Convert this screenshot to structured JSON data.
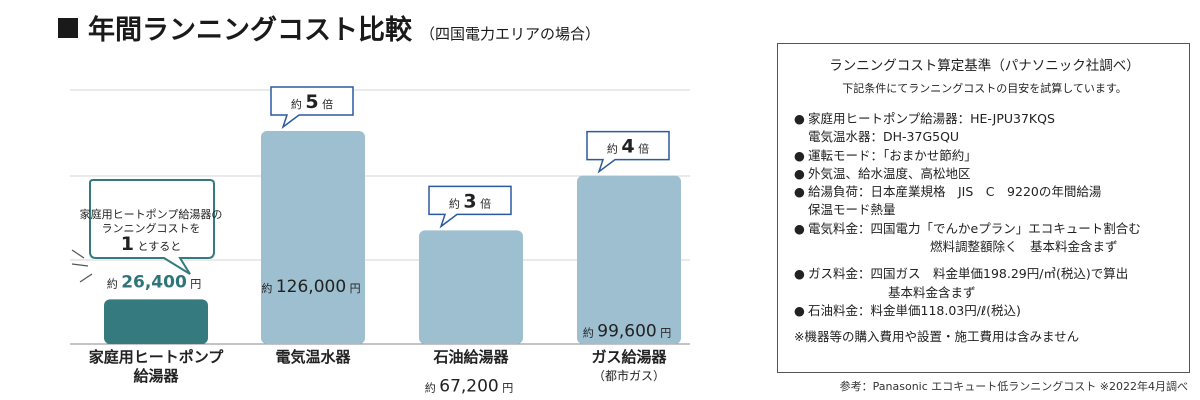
{
  "header": {
    "title": "年間ランニングコスト比較",
    "subtitle": "（四国電力エリアの場合）"
  },
  "chart_data": {
    "type": "bar",
    "title": "年間ランニングコスト比較",
    "subtitle": "（四国電力エリアの場合）",
    "value_unit": "円",
    "value_prefix": "約",
    "grid": true,
    "categories": [
      {
        "label": "家庭用ヒートポンプ",
        "label2": "給湯器",
        "sublabel": ""
      },
      {
        "label": "電気温水器",
        "label2": "",
        "sublabel": ""
      },
      {
        "label": "石油給湯器",
        "label2": "",
        "sublabel": ""
      },
      {
        "label": "ガス給湯器",
        "label2": "",
        "sublabel": "（都市ガス）"
      }
    ],
    "values": [
      26400,
      126000,
      67200,
      99600
    ],
    "value_labels": [
      "26,400",
      "126,000",
      "67,200",
      "99,600"
    ],
    "multipliers": [
      null,
      "5",
      "3",
      "4"
    ],
    "multiplier_prefix": "約",
    "multiplier_suffix": "倍",
    "baseline_callout": {
      "line1": "家庭用ヒートポンプ給湯器の",
      "line2": "ランニングコストを",
      "num": "1",
      "line3": "とすると"
    },
    "colors": {
      "highlight": "#347a7e",
      "bar": "#9dbfd0",
      "callout_border": "#2a5aa0"
    }
  },
  "criteria": {
    "title": "ランニングコスト算定基準（パナソニック社調べ）",
    "intro": "下記条件にてランニングコストの目安を試算しています。",
    "bullet": "●",
    "items": [
      {
        "lines": [
          "家庭用ヒートポンプ給湯器：HE-JPU37KQS",
          "電気温水器：DH-37G5QU"
        ]
      },
      {
        "lines": [
          "運転モード：「おまかせ節約」"
        ]
      },
      {
        "lines": [
          "外気温、給水温度、高松地区"
        ]
      },
      {
        "lines": [
          "給湯負荷：日本産業規格　JIS　C　9220の年間給湯",
          "保温モード熱量"
        ]
      },
      {
        "lines": [
          "電気料金：四国電力「でんかeプラン」エコキュート割合む",
          "燃料調整額除く　基本料金含まず"
        ]
      },
      {
        "lines": [
          "ガス料金：四国ガス　料金単価198.29円/㎥(税込)で算出",
          "基本料金含まず"
        ]
      },
      {
        "lines": [
          "石油料金：料金単価118.03円/ℓ(税込)"
        ]
      }
    ],
    "note": "※機器等の購入費用や設置・施工費用は含みません"
  },
  "source": "参考：Panasonic エコキュート低ランニングコスト ※2022年4月調べ"
}
